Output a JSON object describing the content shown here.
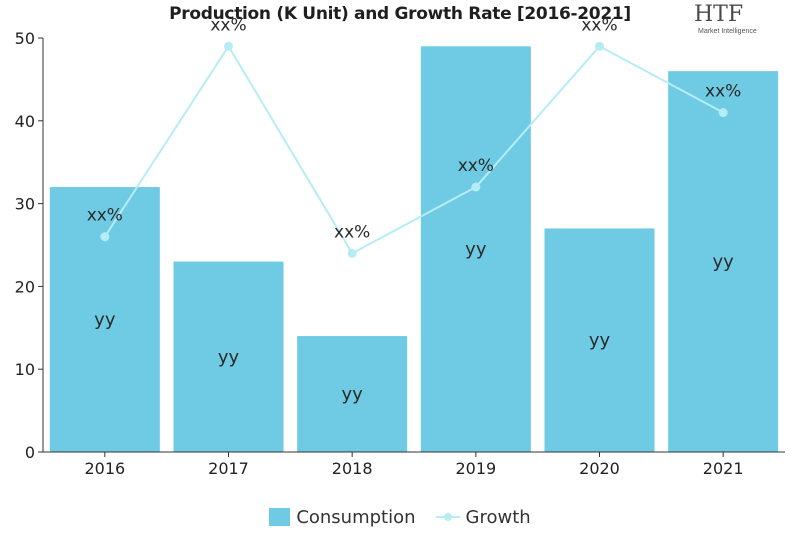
{
  "chart_data": {
    "type": "bar",
    "title": "Production (K Unit) and Growth Rate [2016-2021]",
    "categories": [
      "2016",
      "2017",
      "2018",
      "2019",
      "2020",
      "2021"
    ],
    "ylim": [
      0,
      50
    ],
    "yticks": [
      "0",
      "10",
      "20",
      "30",
      "40",
      "50"
    ],
    "grid": false,
    "legend_position": "bottom-center",
    "series": [
      {
        "name": "Consumption",
        "kind": "bar",
        "color": "#6ecbe3",
        "values": [
          32,
          23,
          14,
          49,
          27,
          46
        ],
        "data_labels": [
          "yy",
          "yy",
          "yy",
          "yy",
          "yy",
          "yy"
        ]
      },
      {
        "name": "Growth",
        "kind": "line",
        "color": "#b6edf5",
        "values": [
          26,
          49,
          24,
          32,
          49,
          41
        ],
        "data_labels": [
          "xx%",
          "xx%",
          "xx%",
          "xx%",
          "xx%",
          "xx%"
        ]
      }
    ]
  },
  "logo": {
    "main": "HTF",
    "sub": "Market Intelligence"
  }
}
